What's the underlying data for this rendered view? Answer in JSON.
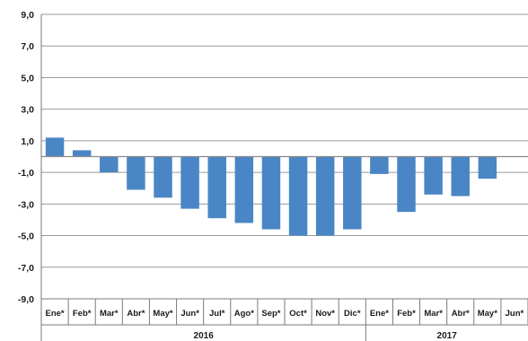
{
  "chart_data": {
    "type": "bar",
    "title": "",
    "xlabel": "",
    "ylabel": "",
    "ylim": [
      -9,
      9
    ],
    "yticks": [
      9,
      7,
      5,
      3,
      1,
      -1,
      -3,
      -5,
      -7,
      -9
    ],
    "ytick_labels": [
      "9,0",
      "7,0",
      "5,0",
      "3,0",
      "1,0",
      "-1,0",
      "-3,0",
      "-5,0",
      "-7,0",
      "-9,0"
    ],
    "categories": [
      "Ene*",
      "Feb*",
      "Mar*",
      "Abr*",
      "May*",
      "Jun*",
      "Jul*",
      "Ago*",
      "Sep*",
      "Oct*",
      "Nov*",
      "Dic*",
      "Ene*",
      "Feb*",
      "Mar*",
      "Abr*",
      "May*",
      "Jun*"
    ],
    "values": [
      1.2,
      0.4,
      -1.0,
      -2.1,
      -2.6,
      -3.3,
      -3.9,
      -4.2,
      -4.6,
      -5.0,
      -5.0,
      -4.6,
      -1.1,
      -3.5,
      -2.4,
      -2.5,
      -1.4,
      null
    ],
    "groups": [
      {
        "label": "2016",
        "start": 0,
        "end": 11
      },
      {
        "label": "2017",
        "start": 12,
        "end": 17
      }
    ],
    "bar_color": "#4a86c5",
    "grid": true,
    "legend": "none"
  }
}
